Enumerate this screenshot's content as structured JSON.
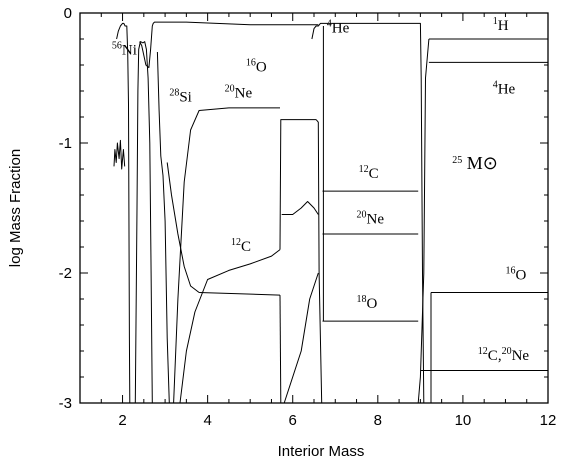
{
  "chart_data": {
    "type": "line",
    "title": "",
    "xlabel": "Interior Mass",
    "ylabel": "log Mass Fraction",
    "xlim": [
      1,
      12
    ],
    "ylim": [
      -3,
      0
    ],
    "grid": false,
    "legend": "none",
    "x_ticks": [
      {
        "value": 2,
        "label": "2"
      },
      {
        "value": 4,
        "label": "4"
      },
      {
        "value": 6,
        "label": "6"
      },
      {
        "value": 8,
        "label": "8"
      },
      {
        "value": 10,
        "label": "10"
      },
      {
        "value": 12,
        "label": "12"
      }
    ],
    "y_ticks": [
      {
        "value": 0,
        "label": "0"
      },
      {
        "value": -1,
        "label": "-1"
      },
      {
        "value": -2,
        "label": "-2"
      },
      {
        "value": -3,
        "label": "-3"
      }
    ],
    "annotations": [
      {
        "text": "56Ni",
        "x": 1.75,
        "y": -0.32
      },
      {
        "text": "16O",
        "x": 4.9,
        "y": -0.45
      },
      {
        "text": "28Si",
        "x": 3.1,
        "y": -0.68
      },
      {
        "text": "20Ne",
        "x": 4.4,
        "y": -0.65
      },
      {
        "text": "4He",
        "x": 6.8,
        "y": -0.15
      },
      {
        "text": "1H",
        "x": 10.7,
        "y": -0.13
      },
      {
        "text": "4He",
        "x": 10.7,
        "y": -0.62
      },
      {
        "text": "12C",
        "x": 7.55,
        "y": -1.27
      },
      {
        "text": "25 M⊙",
        "x": 9.75,
        "y": -1.2
      },
      {
        "text": "20Ne",
        "x": 7.5,
        "y": -1.62
      },
      {
        "text": "12C",
        "x": 4.55,
        "y": -1.83
      },
      {
        "text": "16O",
        "x": 11.0,
        "y": -2.05
      },
      {
        "text": "18O",
        "x": 7.5,
        "y": -2.27
      },
      {
        "text": "12C,20Ne",
        "x": 10.35,
        "y": -2.67
      }
    ],
    "series": [
      {
        "x": [
          1.86,
          1.9,
          1.95,
          2.0,
          2.03,
          2.06,
          2.1,
          2.12,
          2.14,
          2.15,
          2.16,
          2.17
        ],
        "y": [
          -0.2,
          -0.14,
          -0.1,
          -0.08,
          -0.08,
          -0.1,
          -0.1,
          -0.3,
          -0.7,
          -1.5,
          -2.5,
          -3.0
        ]
      },
      {
        "x": [
          1.8,
          1.82,
          1.85,
          1.88,
          1.92,
          1.95,
          1.98,
          2.02,
          2.05
        ],
        "y": [
          -1.18,
          -1.05,
          -1.15,
          -1.0,
          -1.12,
          -0.98,
          -1.2,
          -1.05,
          -1.18
        ]
      },
      {
        "x": [
          2.3,
          2.34,
          2.36,
          2.38,
          2.42,
          2.48,
          2.52,
          2.56,
          2.6,
          2.64,
          2.67,
          2.7
        ],
        "y": [
          -3.0,
          -1.5,
          -0.6,
          -0.28,
          -0.22,
          -0.23,
          -0.22,
          -0.28,
          -0.5,
          -1.0,
          -2.0,
          -3.0
        ]
      },
      {
        "x": [
          2.4,
          2.45,
          2.55,
          2.62,
          2.66,
          2.7,
          2.72,
          2.75,
          2.8,
          2.9,
          3.5,
          5.0,
          6.6
        ],
        "y": [
          -0.22,
          -0.25,
          -0.4,
          -0.42,
          -0.28,
          -0.1,
          -0.08,
          -0.07,
          -0.07,
          -0.07,
          -0.07,
          -0.09,
          -0.09
        ]
      },
      {
        "x": [
          2.82,
          2.86,
          2.9,
          2.95,
          3.0,
          3.05,
          3.1
        ],
        "y": [
          -0.3,
          -0.75,
          -1.1,
          -1.25,
          -1.6,
          -2.5,
          -3.0
        ]
      },
      {
        "x": [
          3.2,
          3.3,
          3.45,
          3.6,
          3.8,
          4.5,
          5.7
        ],
        "y": [
          -3.0,
          -2.2,
          -1.3,
          -0.9,
          -0.75,
          -0.73,
          -0.73
        ]
      },
      {
        "x": [
          3.05,
          3.15,
          3.3,
          3.45,
          3.6,
          3.8
        ],
        "y": [
          -1.15,
          -1.4,
          -1.7,
          -1.95,
          -2.1,
          -2.15
        ]
      },
      {
        "x": [
          3.8,
          5.7
        ],
        "y": [
          -2.15,
          -2.17
        ]
      },
      {
        "x": [
          5.7,
          5.72
        ],
        "y": [
          -2.17,
          -3.0
        ]
      },
      {
        "x": [
          3.35,
          3.5,
          3.7,
          4.0,
          4.5,
          5.0,
          5.5,
          5.7
        ],
        "y": [
          -3.0,
          -2.6,
          -2.3,
          -2.05,
          -1.98,
          -1.93,
          -1.87,
          -1.82
        ]
      },
      {
        "x": [
          5.7,
          5.72,
          6.55
        ],
        "y": [
          -1.82,
          -0.82,
          -0.82
        ]
      },
      {
        "x": [
          5.74,
          6.0,
          6.2,
          6.35,
          6.5,
          6.6
        ],
        "y": [
          -1.55,
          -1.55,
          -1.5,
          -1.45,
          -1.5,
          -1.55
        ]
      },
      {
        "x": [
          5.8,
          6.2,
          6.4,
          6.6
        ],
        "y": [
          -3.0,
          -2.6,
          -2.2,
          -2.0
        ]
      },
      {
        "x": [
          6.55,
          6.6,
          6.62,
          6.68
        ],
        "y": [
          -0.82,
          -0.84,
          -2.0,
          -3.0
        ]
      },
      {
        "x": [
          6.45,
          6.5,
          6.55,
          6.6,
          6.65,
          6.7,
          9.0,
          9.02,
          9.05,
          9.08
        ],
        "y": [
          -0.2,
          -0.12,
          -0.1,
          -0.1,
          -0.08,
          -0.08,
          -0.08,
          -0.5,
          -2.0,
          -3.0
        ]
      },
      {
        "x": [
          6.7,
          8.95
        ],
        "y": [
          -1.37,
          -1.37
        ]
      },
      {
        "x": [
          6.7,
          8.95
        ],
        "y": [
          -1.7,
          -1.7
        ]
      },
      {
        "x": [
          6.7,
          8.95
        ],
        "y": [
          -2.37,
          -2.37
        ]
      },
      {
        "x": [
          6.72,
          6.72
        ],
        "y": [
          -0.1,
          -2.37
        ]
      },
      {
        "x": [
          8.95,
          9.0,
          9.08,
          9.12,
          9.2
        ],
        "y": [
          -3.0,
          -2.8,
          -2.0,
          -0.5,
          -0.2
        ]
      },
      {
        "x": [
          9.2,
          12.0
        ],
        "y": [
          -0.2,
          -0.2
        ]
      },
      {
        "x": [
          9.2,
          12.0
        ],
        "y": [
          -0.38,
          -0.38
        ]
      },
      {
        "x": [
          9.25,
          9.25
        ],
        "y": [
          -2.15,
          -3.0
        ]
      },
      {
        "x": [
          9.25,
          12.0
        ],
        "y": [
          -2.15,
          -2.15
        ]
      },
      {
        "x": [
          9.0,
          12.0
        ],
        "y": [
          -2.75,
          -2.75
        ]
      }
    ]
  }
}
